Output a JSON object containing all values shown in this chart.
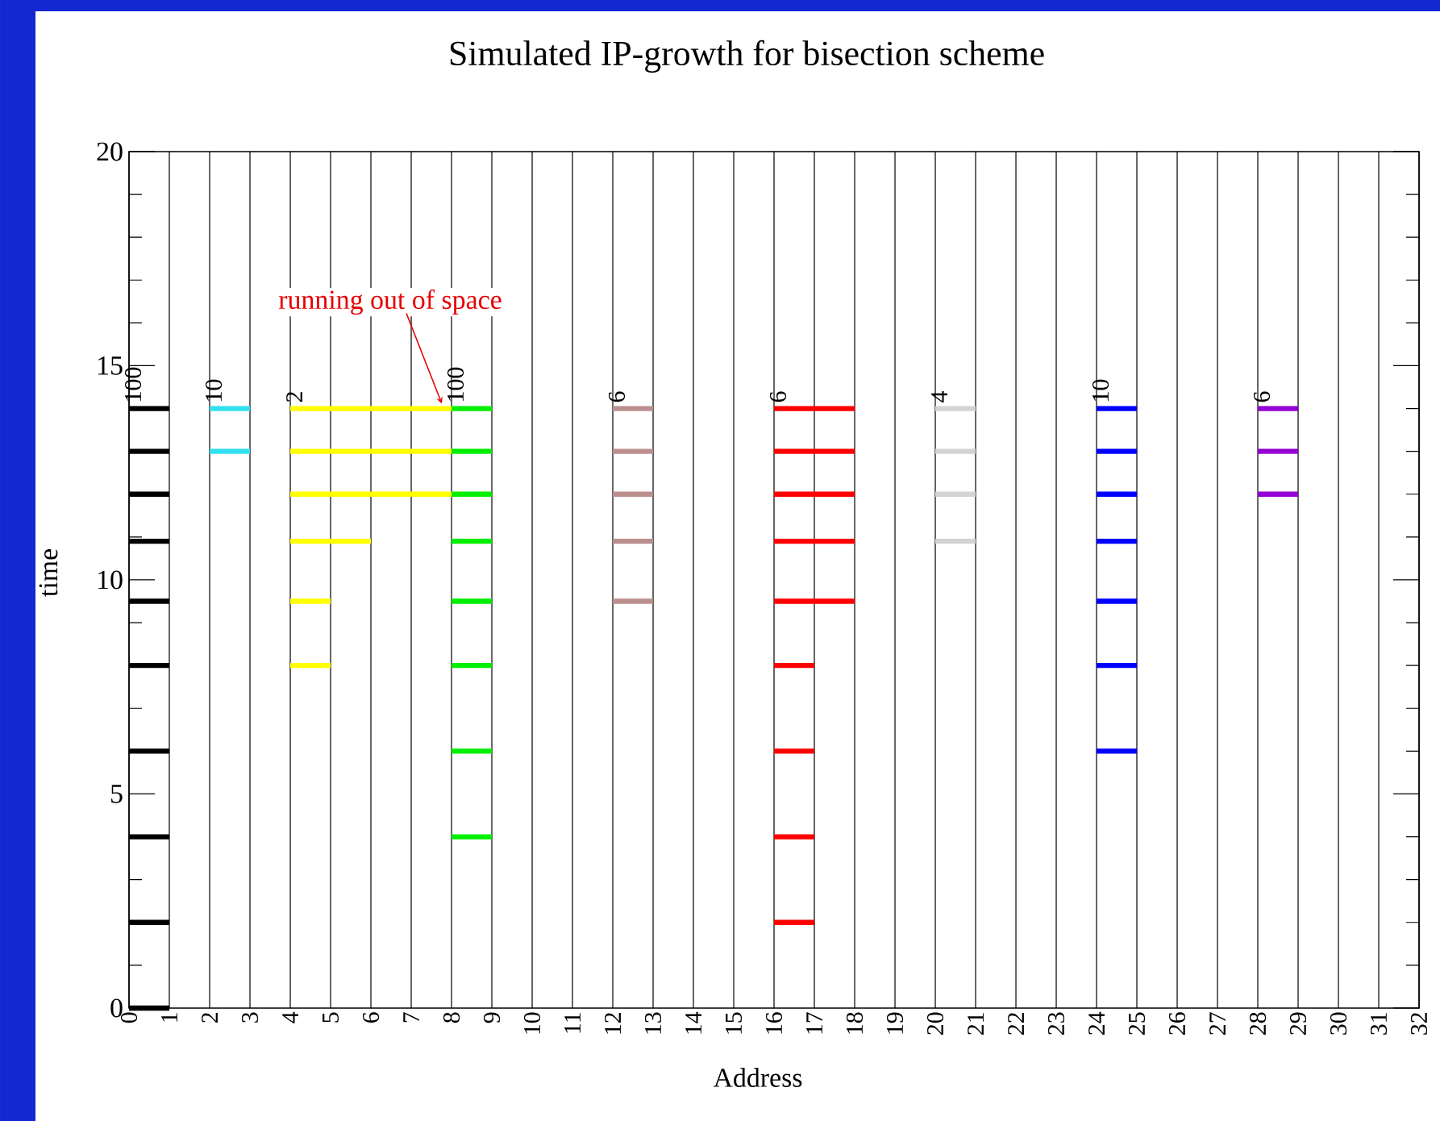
{
  "chart_data": {
    "type": "line",
    "title": "Simulated IP-growth for bisection scheme",
    "xlabel": "Address",
    "ylabel": "time",
    "xlim": [
      0,
      32
    ],
    "xticks": [
      0,
      1,
      2,
      3,
      4,
      5,
      6,
      7,
      8,
      9,
      10,
      11,
      12,
      13,
      14,
      15,
      16,
      17,
      18,
      19,
      20,
      21,
      22,
      23,
      24,
      25,
      26,
      27,
      28,
      29,
      30,
      31,
      32
    ],
    "ylim": [
      0,
      20
    ],
    "yticks": [
      0,
      5,
      10,
      15,
      20
    ],
    "grid": "x",
    "marker": "none",
    "line_style": "solid",
    "annotations": [
      {
        "text": "running out of space",
        "x": 8,
        "y": 14
      },
      {
        "text": "100",
        "x": 0.5,
        "y": 14
      },
      {
        "text": "10",
        "x": 2.5,
        "y": 14
      },
      {
        "text": "2",
        "x": 4.5,
        "y": 14
      },
      {
        "text": "100",
        "x": 8.5,
        "y": 14
      },
      {
        "text": "6",
        "x": 12.5,
        "y": 14
      },
      {
        "text": "6",
        "x": 16.5,
        "y": 14
      },
      {
        "text": "4",
        "x": 20.5,
        "y": 14
      },
      {
        "text": "10",
        "x": 24.5,
        "y": 14
      },
      {
        "text": "6",
        "x": 28.5,
        "y": 14
      }
    ],
    "series": [
      {
        "color": "#000000",
        "x": [
          0,
          1
        ],
        "values": [
          0,
          0
        ]
      },
      {
        "color": "#000000",
        "x": [
          0,
          1
        ],
        "values": [
          2,
          2
        ]
      },
      {
        "color": "#000000",
        "x": [
          0,
          1
        ],
        "values": [
          4,
          4
        ]
      },
      {
        "color": "#000000",
        "x": [
          0,
          1
        ],
        "values": [
          6,
          6
        ]
      },
      {
        "color": "#000000",
        "x": [
          0,
          1
        ],
        "values": [
          8,
          8
        ]
      },
      {
        "color": "#000000",
        "x": [
          0,
          1
        ],
        "values": [
          9.5,
          9.5
        ]
      },
      {
        "color": "#000000",
        "x": [
          0,
          1
        ],
        "values": [
          10.9,
          10.9
        ]
      },
      {
        "color": "#000000",
        "x": [
          0,
          1
        ],
        "values": [
          12,
          12
        ]
      },
      {
        "color": "#000000",
        "x": [
          0,
          1
        ],
        "values": [
          13,
          13
        ]
      },
      {
        "color": "#000000",
        "x": [
          0,
          1
        ],
        "values": [
          14,
          14
        ]
      },
      {
        "color": "#33e0f0",
        "x": [
          2,
          3
        ],
        "values": [
          13,
          13
        ]
      },
      {
        "color": "#33e0f0",
        "x": [
          2,
          3
        ],
        "values": [
          14,
          14
        ]
      },
      {
        "color": "#ffff00",
        "x": [
          4,
          5
        ],
        "values": [
          8,
          8
        ]
      },
      {
        "color": "#ffff00",
        "x": [
          4,
          5
        ],
        "values": [
          9.5,
          9.5
        ]
      },
      {
        "color": "#ffff00",
        "x": [
          4,
          6
        ],
        "values": [
          10.9,
          10.9
        ]
      },
      {
        "color": "#ffff00",
        "x": [
          4,
          8
        ],
        "values": [
          12,
          12
        ]
      },
      {
        "color": "#ffff00",
        "x": [
          4,
          8
        ],
        "values": [
          13,
          13
        ]
      },
      {
        "color": "#ffff00",
        "x": [
          4,
          8
        ],
        "values": [
          14,
          14
        ]
      },
      {
        "color": "#00ee00",
        "x": [
          8,
          9
        ],
        "values": [
          4,
          4
        ]
      },
      {
        "color": "#00ee00",
        "x": [
          8,
          9
        ],
        "values": [
          6,
          6
        ]
      },
      {
        "color": "#00ee00",
        "x": [
          8,
          9
        ],
        "values": [
          8,
          8
        ]
      },
      {
        "color": "#00ee00",
        "x": [
          8,
          9
        ],
        "values": [
          9.5,
          9.5
        ]
      },
      {
        "color": "#00ee00",
        "x": [
          8,
          9
        ],
        "values": [
          10.9,
          10.9
        ]
      },
      {
        "color": "#00ee00",
        "x": [
          8,
          9
        ],
        "values": [
          12,
          12
        ]
      },
      {
        "color": "#00ee00",
        "x": [
          8,
          9
        ],
        "values": [
          13,
          13
        ]
      },
      {
        "color": "#00ee00",
        "x": [
          8,
          9
        ],
        "values": [
          14,
          14
        ]
      },
      {
        "color": "#bc8f8f",
        "x": [
          12,
          13
        ],
        "values": [
          9.5,
          9.5
        ]
      },
      {
        "color": "#bc8f8f",
        "x": [
          12,
          13
        ],
        "values": [
          10.9,
          10.9
        ]
      },
      {
        "color": "#bc8f8f",
        "x": [
          12,
          13
        ],
        "values": [
          12,
          12
        ]
      },
      {
        "color": "#bc8f8f",
        "x": [
          12,
          13
        ],
        "values": [
          13,
          13
        ]
      },
      {
        "color": "#bc8f8f",
        "x": [
          12,
          13
        ],
        "values": [
          14,
          14
        ]
      },
      {
        "color": "#ff0000",
        "x": [
          16,
          17
        ],
        "values": [
          2,
          2
        ]
      },
      {
        "color": "#ff0000",
        "x": [
          16,
          17
        ],
        "values": [
          4,
          4
        ]
      },
      {
        "color": "#ff0000",
        "x": [
          16,
          17
        ],
        "values": [
          6,
          6
        ]
      },
      {
        "color": "#ff0000",
        "x": [
          16,
          17
        ],
        "values": [
          8,
          8
        ]
      },
      {
        "color": "#ff0000",
        "x": [
          16,
          18
        ],
        "values": [
          9.5,
          9.5
        ]
      },
      {
        "color": "#ff0000",
        "x": [
          16,
          18
        ],
        "values": [
          10.9,
          10.9
        ]
      },
      {
        "color": "#ff0000",
        "x": [
          16,
          18
        ],
        "values": [
          12,
          12
        ]
      },
      {
        "color": "#ff0000",
        "x": [
          16,
          18
        ],
        "values": [
          13,
          13
        ]
      },
      {
        "color": "#ff0000",
        "x": [
          16,
          18
        ],
        "values": [
          14,
          14
        ]
      },
      {
        "color": "#d3d3d3",
        "x": [
          20,
          21
        ],
        "values": [
          10.9,
          10.9
        ]
      },
      {
        "color": "#d3d3d3",
        "x": [
          20,
          21
        ],
        "values": [
          12,
          12
        ]
      },
      {
        "color": "#d3d3d3",
        "x": [
          20,
          21
        ],
        "values": [
          13,
          13
        ]
      },
      {
        "color": "#d3d3d3",
        "x": [
          20,
          21
        ],
        "values": [
          14,
          14
        ]
      },
      {
        "color": "#0000ff",
        "x": [
          24,
          25
        ],
        "values": [
          6,
          6
        ]
      },
      {
        "color": "#0000ff",
        "x": [
          24,
          25
        ],
        "values": [
          8,
          8
        ]
      },
      {
        "color": "#0000ff",
        "x": [
          24,
          25
        ],
        "values": [
          9.5,
          9.5
        ]
      },
      {
        "color": "#0000ff",
        "x": [
          24,
          25
        ],
        "values": [
          10.9,
          10.9
        ]
      },
      {
        "color": "#0000ff",
        "x": [
          24,
          25
        ],
        "values": [
          12,
          12
        ]
      },
      {
        "color": "#0000ff",
        "x": [
          24,
          25
        ],
        "values": [
          13,
          13
        ]
      },
      {
        "color": "#0000ff",
        "x": [
          24,
          25
        ],
        "values": [
          14,
          14
        ]
      },
      {
        "color": "#9400d3",
        "x": [
          28,
          29
        ],
        "values": [
          12,
          12
        ]
      },
      {
        "color": "#9400d3",
        "x": [
          28,
          29
        ],
        "values": [
          13,
          13
        ]
      },
      {
        "color": "#9400d3",
        "x": [
          28,
          29
        ],
        "values": [
          14,
          14
        ]
      }
    ]
  }
}
